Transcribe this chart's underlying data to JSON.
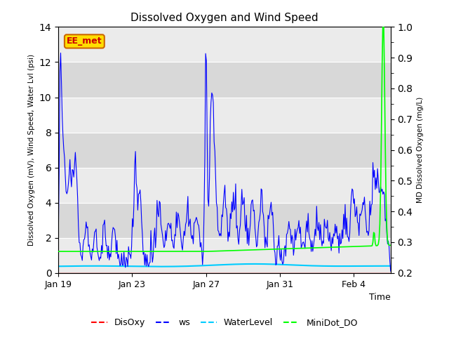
{
  "title": "Dissolved Oxygen and Wind Speed",
  "ylabel_left": "Dissolved Oxygen (mV), Wind Speed, Water Lvl (psi)",
  "ylabel_right": "MD Dissolved Oxygen (mg/L)",
  "xlabel": "Time",
  "ylim_left": [
    0,
    14
  ],
  "ylim_right": [
    0.2,
    1.0
  ],
  "yticks_left": [
    0,
    2,
    4,
    6,
    8,
    10,
    12,
    14
  ],
  "yticks_right": [
    0.2,
    0.3,
    0.4,
    0.5,
    0.6,
    0.7,
    0.8,
    0.9,
    1.0
  ],
  "xtick_labels": [
    "Jan 19",
    "Jan 23",
    "Jan 27",
    "Jan 31",
    "Feb 4"
  ],
  "xtick_days": [
    0,
    4,
    8,
    12,
    16
  ],
  "xlim": [
    0,
    18
  ],
  "legend_entries": [
    "DisOxy",
    "ws",
    "WaterLevel",
    "MiniDot_DO"
  ],
  "colors": {
    "disoxy": "#ff0000",
    "ws": "#0000ff",
    "waterlevel": "#00ccff",
    "minidot": "#00ff00"
  },
  "box_label": "EE_met",
  "box_color": "#ffdd00",
  "box_border": "#cc6600",
  "background_plot": "#e8e8e8",
  "background_fig": "#ffffff",
  "grid_color": "#ffffff",
  "band_light": "#ebebeb",
  "band_dark": "#d8d8d8"
}
